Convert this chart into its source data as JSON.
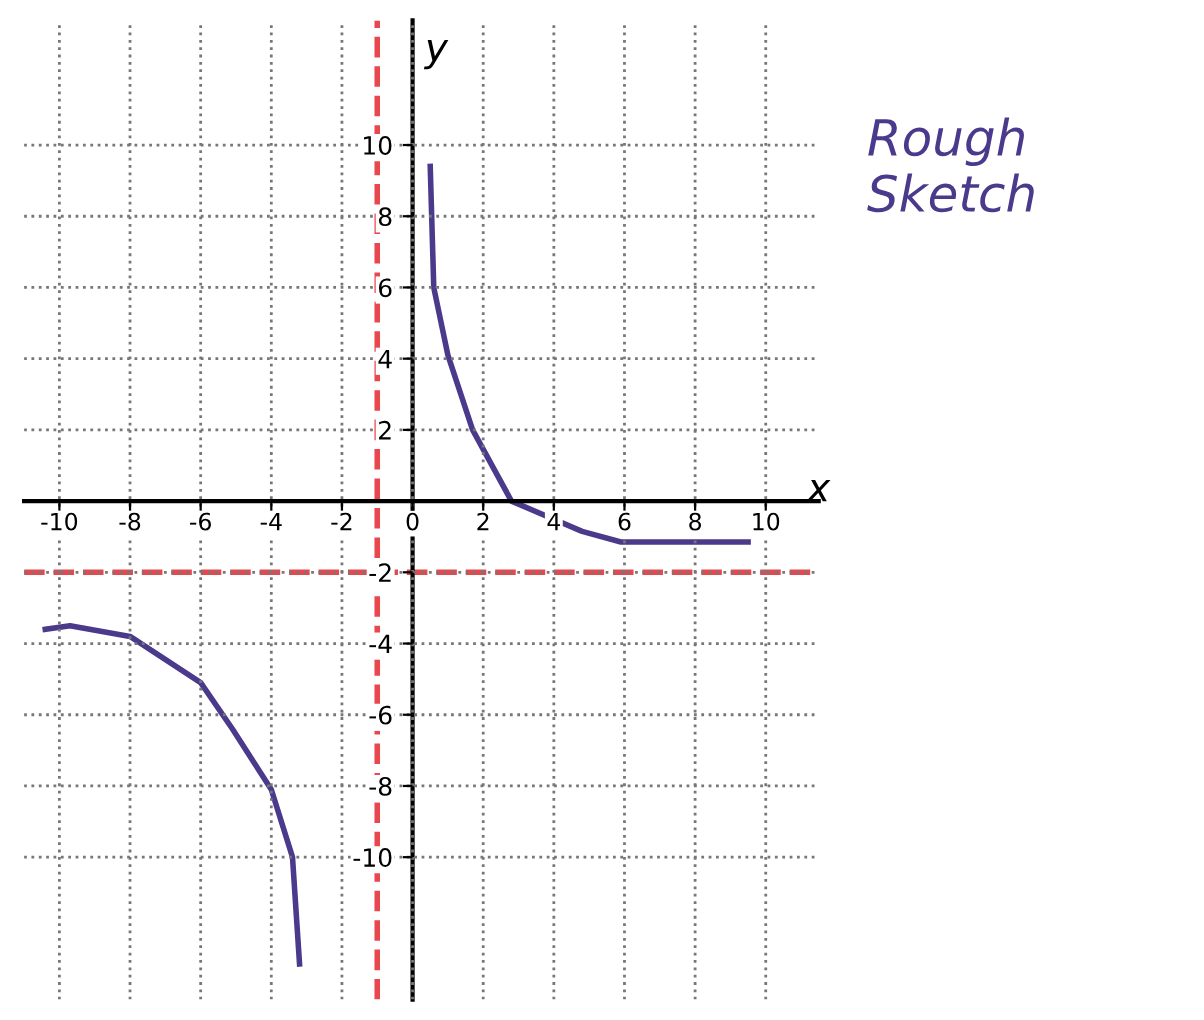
{
  "chart_data": {
    "type": "line",
    "xlabel": "x",
    "ylabel": "y",
    "annotations": [
      "Rough Sketch"
    ],
    "series": [
      {
        "color": "#4b3a8c",
        "x": [
          0.5,
          0.6,
          1.0,
          1.7,
          2.8,
          4.8,
          5.9,
          9.5
        ],
        "values": [
          9.4,
          6,
          4.1,
          2,
          0,
          -0.85,
          -1.15,
          -1.15
        ]
      },
      {
        "color": "#4b3a8c",
        "x": [
          -10.4,
          -9.7,
          -8,
          -6,
          -5.1,
          -4,
          -3.4,
          -3.2
        ],
        "values": [
          -3.6,
          -3.5,
          -3.8,
          -5.1,
          -6.4,
          -8.1,
          -10,
          -13
        ]
      }
    ],
    "ref_lines": [
      {
        "axis": "x",
        "value": -1,
        "color": "#e8474e",
        "line_style": "dashed"
      },
      {
        "axis": "y",
        "value": -2,
        "color": "#e8474e",
        "line_style": "dashed"
      }
    ],
    "xlim": [
      -11,
      11.5
    ],
    "ylim": [
      -14,
      13.5
    ],
    "xticks": [
      -10,
      -8,
      -6,
      -4,
      -2,
      0,
      2,
      4,
      6,
      8,
      10
    ],
    "yticks": [
      -10,
      -8,
      -6,
      -4,
      -2,
      2,
      4,
      6,
      8,
      10
    ],
    "grid": true,
    "marker": "none",
    "line_style": "solid"
  }
}
